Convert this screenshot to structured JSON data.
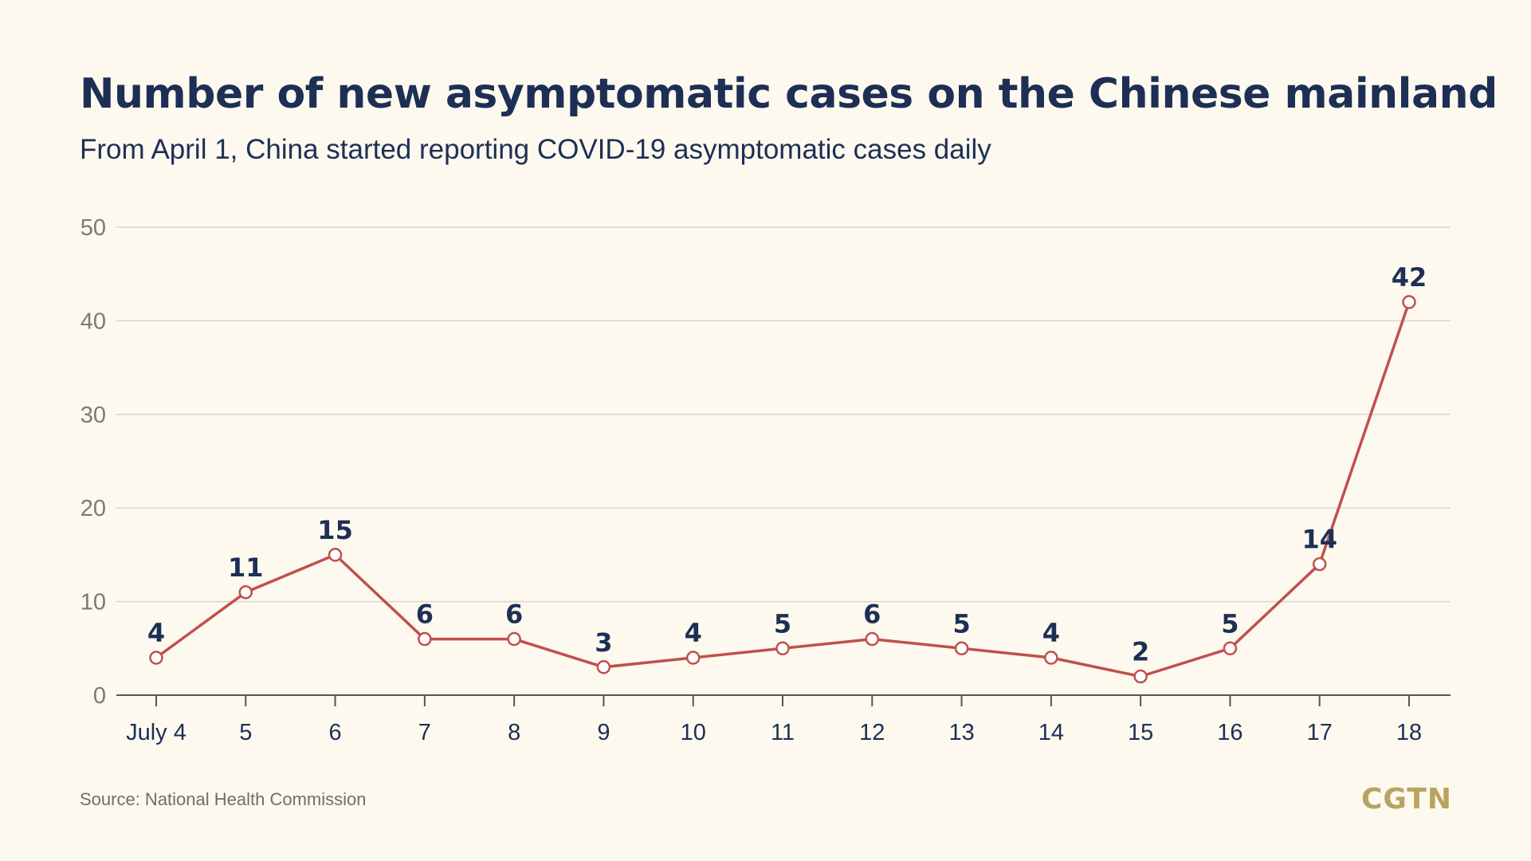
{
  "header": {
    "title": "Number of new asymptomatic cases on the Chinese mainland",
    "subtitle": "From April 1, China started reporting COVID-19 asymptomatic cases daily"
  },
  "footer": {
    "source": "Source: National Health Commission",
    "logo": "CGTN"
  },
  "colors": {
    "background": "#fdf9ef",
    "title": "#1d2f55",
    "line": "#c0504d",
    "grid": "#d9d6c9",
    "axis_text": "#7a7a7a",
    "logo": "#b8a461"
  },
  "chart_data": {
    "type": "line",
    "categories": [
      "July 4",
      "5",
      "6",
      "7",
      "8",
      "9",
      "10",
      "11",
      "12",
      "13",
      "14",
      "15",
      "16",
      "17",
      "18"
    ],
    "values": [
      4,
      11,
      15,
      6,
      6,
      3,
      4,
      5,
      6,
      5,
      4,
      2,
      5,
      14,
      42
    ],
    "ylim": [
      0,
      50
    ],
    "yticks": [
      0,
      10,
      20,
      30,
      40,
      50
    ],
    "grid": true,
    "title": "Number of new asymptomatic cases on the Chinese mainland",
    "subtitle": "From April 1, China started reporting COVID-19 asymptomatic cases daily",
    "xlabel": "",
    "ylabel": ""
  }
}
